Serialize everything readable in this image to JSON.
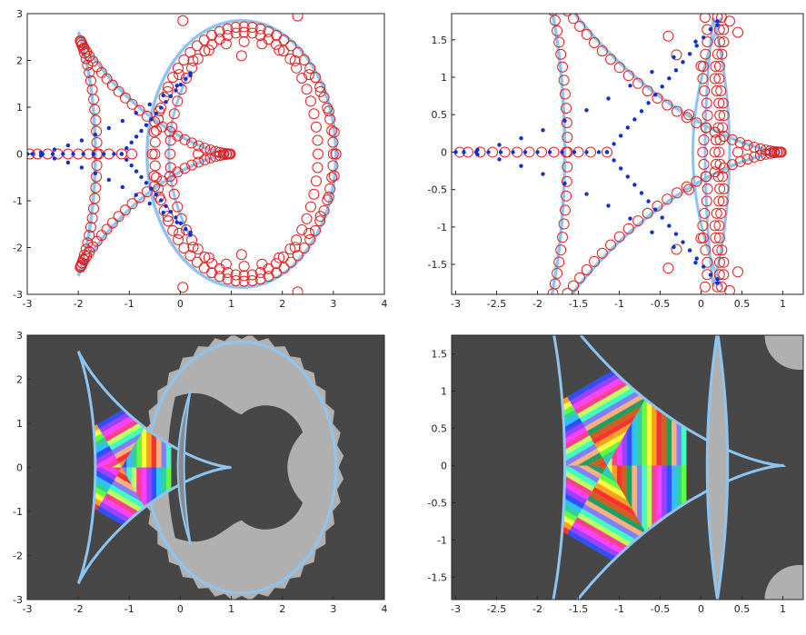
{
  "chart_data": [
    {
      "type": "scatter",
      "xlim": [
        -3,
        4
      ],
      "ylim": [
        -3,
        3
      ],
      "xticks": [
        "-3",
        "-2",
        "-1",
        "0",
        "1",
        "2",
        "3",
        "4"
      ],
      "yticks": [
        "-3",
        "-2",
        "-1",
        "0",
        "1",
        "2",
        "3"
      ],
      "title": "",
      "xlabel": "",
      "ylabel": "",
      "grid": false,
      "curves": {
        "color": "#8ec5f0",
        "deltoid": {
          "center": -1,
          "radius": 2,
          "x_tip": -3,
          "x_cusps": 0.2,
          "y_cusps": 1.73
        },
        "ellipse": {
          "center": [
            1.2,
            0
          ],
          "rx": 1.85,
          "ry": 2.85
        },
        "inner_arc": {
          "x_mid": -0.5,
          "x_end": 0.2,
          "y_end": 1.78
        }
      },
      "series": [
        {
          "marker": "open-circle",
          "color": "#e02020",
          "rings": [
            {
              "cx": 1.25,
              "rx": 1.75,
              "ry": 2.72,
              "n": 68
            },
            {
              "cx": 1.25,
              "rx": 1.45,
              "ry": 2.6,
              "n": 56
            },
            {
              "cx": 1.25,
              "rx": 1.8,
              "ry": 2.4,
              "n": 32
            }
          ],
          "deltoid_points": 96,
          "axis_x": [
            -2.95,
            -2.8,
            -2.6,
            -2.4,
            -2.2,
            -2.0,
            -1.8,
            -1.6,
            -1.4,
            -1.15,
            -0.95,
            0.35,
            3.05
          ],
          "extra": [
            [
              1.2,
              2.1
            ],
            [
              1.2,
              -2.15
            ],
            [
              0.05,
              2.85
            ],
            [
              0.05,
              -2.85
            ],
            [
              2.3,
              -2.95
            ],
            [
              2.3,
              2.95
            ]
          ]
        },
        {
          "marker": "filled-dot",
          "color": "#1030d0",
          "spokes": {
            "x0": -1.15,
            "x1": 0.2,
            "y1": 1.73,
            "n": 14
          },
          "axis_x": [
            -2.9,
            -2.7,
            -2.5,
            -2.3,
            -2.1,
            -1.9,
            -1.7,
            -1.5,
            -1.3
          ]
        }
      ]
    },
    {
      "type": "scatter",
      "xlim": [
        -3.05,
        1.25
      ],
      "ylim": [
        -1.9,
        1.85
      ],
      "xticks": [
        "-3",
        "-2.5",
        "-2",
        "-1.5",
        "-1",
        "-0.5",
        "0",
        "0.5",
        "1"
      ],
      "yticks": [
        "-1.5",
        "-1",
        "-0.5",
        "0",
        "0.5",
        "1",
        "1.5"
      ],
      "title": "",
      "xlabel": "",
      "ylabel": "",
      "grid": false,
      "curves": {
        "color": "#8ec5f0",
        "deltoid": {
          "center": -1,
          "radius": 2,
          "x_tip": -3,
          "x_cusps": 0.2,
          "y_cusps": 1.75
        },
        "lens": {
          "x_left": -0.1,
          "x_right": 0.25,
          "y_end": 1.8
        }
      },
      "series": [
        {
          "marker": "open-circle",
          "color": "#e02020",
          "columns": [
            0.05,
            0.2,
            0.25
          ],
          "column_n": 22,
          "deltoid_points": 120,
          "axis_x": [
            -2.95,
            -2.85,
            -2.7,
            -2.55,
            -2.4,
            -2.25,
            -2.1,
            -1.95,
            -1.8,
            -1.65,
            -1.5,
            -1.35,
            -1.15,
            0.45
          ],
          "extra": [
            [
              -0.3,
              1.3
            ],
            [
              -0.3,
              -1.3
            ],
            [
              -0.15,
              0.5
            ],
            [
              -0.15,
              -0.5
            ],
            [
              0.45,
              1.6
            ],
            [
              0.45,
              -1.6
            ],
            [
              -0.4,
              1.55
            ],
            [
              -0.4,
              -1.55
            ],
            [
              0.0,
              1.15
            ],
            [
              0.0,
              -1.15
            ],
            [
              0.35,
              1.75
            ],
            [
              0.35,
              -1.85
            ]
          ]
        },
        {
          "marker": "filled-dot",
          "color": "#1030d0",
          "spokes": {
            "x0": -1.15,
            "x1": 0.2,
            "y1": 1.75,
            "n": 16
          },
          "axis_x": [
            -2.9,
            -2.75,
            -2.6,
            -2.45,
            -2.3,
            -2.15,
            -2.0,
            -1.85,
            -1.7,
            -1.55,
            -1.4,
            -1.25
          ]
        }
      ]
    },
    {
      "type": "heatmap",
      "xlim": [
        -3,
        4
      ],
      "ylim": [
        -3,
        3
      ],
      "xticks": [
        "-3",
        "-2",
        "-1",
        "0",
        "1",
        "2",
        "3",
        "4"
      ],
      "yticks": [
        "-3",
        "-2",
        "-1",
        "0",
        "1",
        "2",
        "3"
      ],
      "title": "",
      "xlabel": "",
      "ylabel": "",
      "background": "#474747",
      "region_fill": "#b0b0b0",
      "outline": "#8ec5f0",
      "deltoid": {
        "center": -1,
        "radius": 2,
        "x_cusps": 0.2,
        "y_cusps": 1.75
      },
      "ellipse": {
        "center": [
          1.2,
          0
        ],
        "rx": 1.85,
        "ry": 2.85
      },
      "bands": 10,
      "sectors": 3,
      "palette": [
        "#ff3030",
        "#ffa020",
        "#ffff40",
        "#60ff40",
        "#30d0a0",
        "#30c0ff",
        "#3050ff",
        "#a040ff",
        "#ff40ff",
        "#ff4090",
        "#c0ff60",
        "#40ffc0",
        "#8080ff",
        "#ffb080"
      ]
    },
    {
      "type": "heatmap",
      "xlim": [
        -3.05,
        1.25
      ],
      "ylim": [
        -1.8,
        1.75
      ],
      "xticks": [
        "-3",
        "-2.5",
        "-2",
        "-1.5",
        "-1",
        "-0.5",
        "0",
        "0.5",
        "1"
      ],
      "yticks": [
        "-1.5",
        "-1",
        "-0.5",
        "0",
        "0.5",
        "1",
        "1.5"
      ],
      "title": "",
      "xlabel": "",
      "ylabel": "",
      "background": "#474747",
      "region_fill": "#b0b0b0",
      "outline": "#8ec5f0",
      "deltoid": {
        "center": -1,
        "radius": 2,
        "x_cusps": 0.2,
        "y_cusps": 1.75
      },
      "lens": {
        "x_left": -0.1,
        "x_right": 0.25,
        "y_end": 1.8
      },
      "corner_blobs": [
        [
          1.2,
          1.75
        ],
        [
          1.2,
          -1.8
        ]
      ],
      "bands": 16,
      "sectors": 3,
      "palette": [
        "#ff3030",
        "#ffa020",
        "#ffff40",
        "#60ff40",
        "#30d0a0",
        "#30c0ff",
        "#3050ff",
        "#a040ff",
        "#ff40ff",
        "#ff4090",
        "#c0ff60",
        "#40ffc0",
        "#8080ff",
        "#ffb080",
        "#20a060",
        "#d06020"
      ]
    }
  ]
}
